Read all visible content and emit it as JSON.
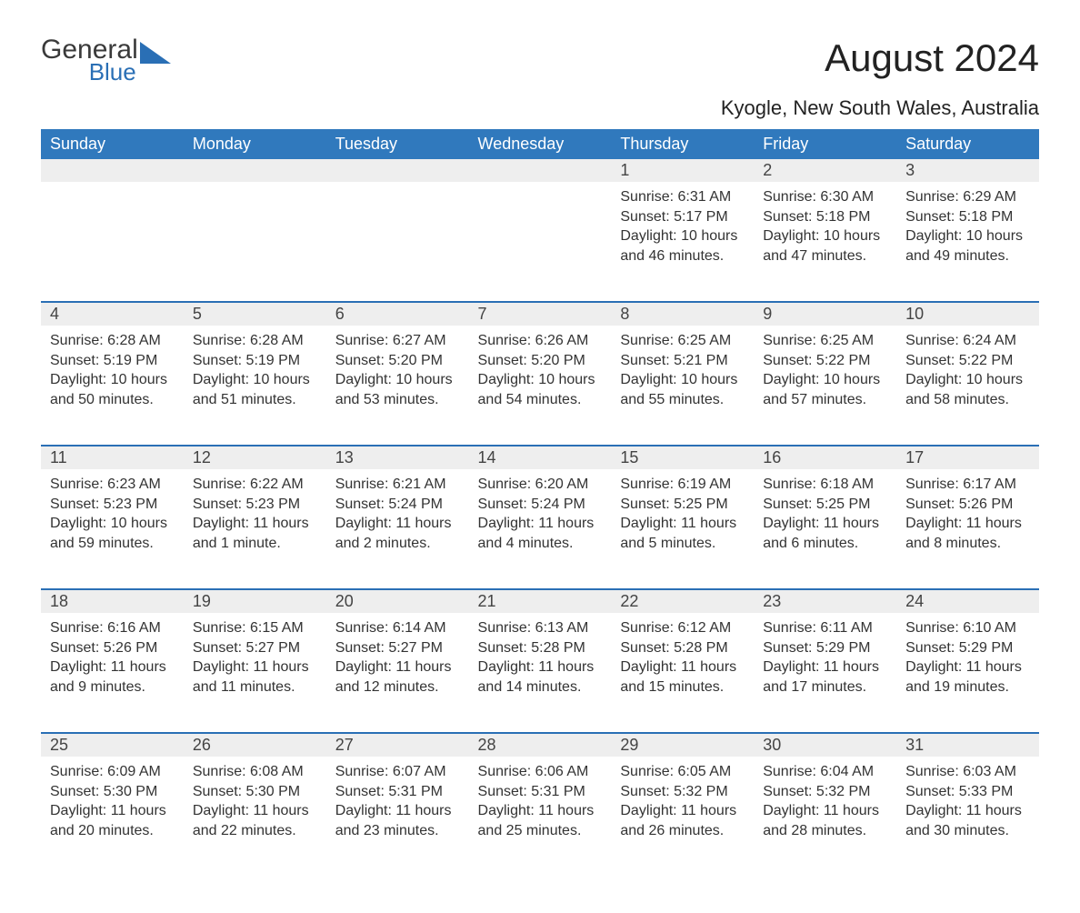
{
  "logo": {
    "line1": "General",
    "line2": "Blue",
    "shape_color": "#2a6fb5"
  },
  "title": "August 2024",
  "location": "Kyogle, New South Wales, Australia",
  "colors": {
    "header_bg": "#3079bd",
    "header_text": "#ffffff",
    "daynum_bg": "#eeeeee",
    "daynum_border": "#2a6fb5",
    "body_text": "#333333"
  },
  "day_headers": [
    "Sunday",
    "Monday",
    "Tuesday",
    "Wednesday",
    "Thursday",
    "Friday",
    "Saturday"
  ],
  "weeks": [
    {
      "days": [
        null,
        null,
        null,
        null,
        {
          "n": "1",
          "sunrise": "6:31 AM",
          "sunset": "5:17 PM",
          "daylight": "10 hours and 46 minutes."
        },
        {
          "n": "2",
          "sunrise": "6:30 AM",
          "sunset": "5:18 PM",
          "daylight": "10 hours and 47 minutes."
        },
        {
          "n": "3",
          "sunrise": "6:29 AM",
          "sunset": "5:18 PM",
          "daylight": "10 hours and 49 minutes."
        }
      ]
    },
    {
      "days": [
        {
          "n": "4",
          "sunrise": "6:28 AM",
          "sunset": "5:19 PM",
          "daylight": "10 hours and 50 minutes."
        },
        {
          "n": "5",
          "sunrise": "6:28 AM",
          "sunset": "5:19 PM",
          "daylight": "10 hours and 51 minutes."
        },
        {
          "n": "6",
          "sunrise": "6:27 AM",
          "sunset": "5:20 PM",
          "daylight": "10 hours and 53 minutes."
        },
        {
          "n": "7",
          "sunrise": "6:26 AM",
          "sunset": "5:20 PM",
          "daylight": "10 hours and 54 minutes."
        },
        {
          "n": "8",
          "sunrise": "6:25 AM",
          "sunset": "5:21 PM",
          "daylight": "10 hours and 55 minutes."
        },
        {
          "n": "9",
          "sunrise": "6:25 AM",
          "sunset": "5:22 PM",
          "daylight": "10 hours and 57 minutes."
        },
        {
          "n": "10",
          "sunrise": "6:24 AM",
          "sunset": "5:22 PM",
          "daylight": "10 hours and 58 minutes."
        }
      ]
    },
    {
      "days": [
        {
          "n": "11",
          "sunrise": "6:23 AM",
          "sunset": "5:23 PM",
          "daylight": "10 hours and 59 minutes."
        },
        {
          "n": "12",
          "sunrise": "6:22 AM",
          "sunset": "5:23 PM",
          "daylight": "11 hours and 1 minute."
        },
        {
          "n": "13",
          "sunrise": "6:21 AM",
          "sunset": "5:24 PM",
          "daylight": "11 hours and 2 minutes."
        },
        {
          "n": "14",
          "sunrise": "6:20 AM",
          "sunset": "5:24 PM",
          "daylight": "11 hours and 4 minutes."
        },
        {
          "n": "15",
          "sunrise": "6:19 AM",
          "sunset": "5:25 PM",
          "daylight": "11 hours and 5 minutes."
        },
        {
          "n": "16",
          "sunrise": "6:18 AM",
          "sunset": "5:25 PM",
          "daylight": "11 hours and 6 minutes."
        },
        {
          "n": "17",
          "sunrise": "6:17 AM",
          "sunset": "5:26 PM",
          "daylight": "11 hours and 8 minutes."
        }
      ]
    },
    {
      "days": [
        {
          "n": "18",
          "sunrise": "6:16 AM",
          "sunset": "5:26 PM",
          "daylight": "11 hours and 9 minutes."
        },
        {
          "n": "19",
          "sunrise": "6:15 AM",
          "sunset": "5:27 PM",
          "daylight": "11 hours and 11 minutes."
        },
        {
          "n": "20",
          "sunrise": "6:14 AM",
          "sunset": "5:27 PM",
          "daylight": "11 hours and 12 minutes."
        },
        {
          "n": "21",
          "sunrise": "6:13 AM",
          "sunset": "5:28 PM",
          "daylight": "11 hours and 14 minutes."
        },
        {
          "n": "22",
          "sunrise": "6:12 AM",
          "sunset": "5:28 PM",
          "daylight": "11 hours and 15 minutes."
        },
        {
          "n": "23",
          "sunrise": "6:11 AM",
          "sunset": "5:29 PM",
          "daylight": "11 hours and 17 minutes."
        },
        {
          "n": "24",
          "sunrise": "6:10 AM",
          "sunset": "5:29 PM",
          "daylight": "11 hours and 19 minutes."
        }
      ]
    },
    {
      "days": [
        {
          "n": "25",
          "sunrise": "6:09 AM",
          "sunset": "5:30 PM",
          "daylight": "11 hours and 20 minutes."
        },
        {
          "n": "26",
          "sunrise": "6:08 AM",
          "sunset": "5:30 PM",
          "daylight": "11 hours and 22 minutes."
        },
        {
          "n": "27",
          "sunrise": "6:07 AM",
          "sunset": "5:31 PM",
          "daylight": "11 hours and 23 minutes."
        },
        {
          "n": "28",
          "sunrise": "6:06 AM",
          "sunset": "5:31 PM",
          "daylight": "11 hours and 25 minutes."
        },
        {
          "n": "29",
          "sunrise": "6:05 AM",
          "sunset": "5:32 PM",
          "daylight": "11 hours and 26 minutes."
        },
        {
          "n": "30",
          "sunrise": "6:04 AM",
          "sunset": "5:32 PM",
          "daylight": "11 hours and 28 minutes."
        },
        {
          "n": "31",
          "sunrise": "6:03 AM",
          "sunset": "5:33 PM",
          "daylight": "11 hours and 30 minutes."
        }
      ]
    }
  ],
  "labels": {
    "sunrise": "Sunrise:",
    "sunset": "Sunset:",
    "daylight": "Daylight:"
  }
}
